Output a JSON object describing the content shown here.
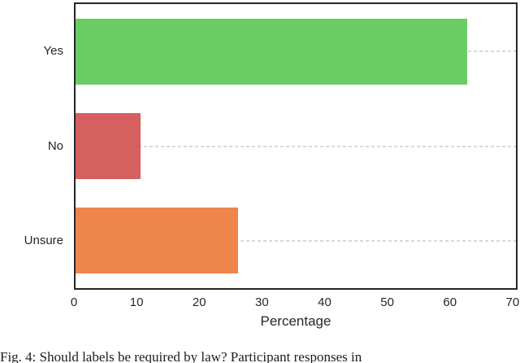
{
  "chart_data": {
    "type": "bar",
    "orientation": "horizontal",
    "title": "",
    "categories": [
      "Yes",
      "No",
      "Unsure"
    ],
    "values": [
      63.0,
      10.4,
      26.1
    ],
    "xlabel": "Percentage",
    "ylabel": "",
    "x_ticks": [
      0,
      10,
      20,
      30,
      40,
      50,
      60,
      70
    ],
    "xlim": [
      0,
      70.8
    ],
    "grid": "y-axis dashed gridlines",
    "legend": "none",
    "bar_colors": [
      "#6acc64",
      "#d65f5f",
      "#ee854a"
    ]
  },
  "colors": {
    "plot_border": "#24282b",
    "gridline": "#d9d9d9",
    "text": "#262626",
    "background": "#ffffff"
  },
  "caption": {
    "text": "Fig. 4: Should labels be required by law? Participant responses in"
  }
}
